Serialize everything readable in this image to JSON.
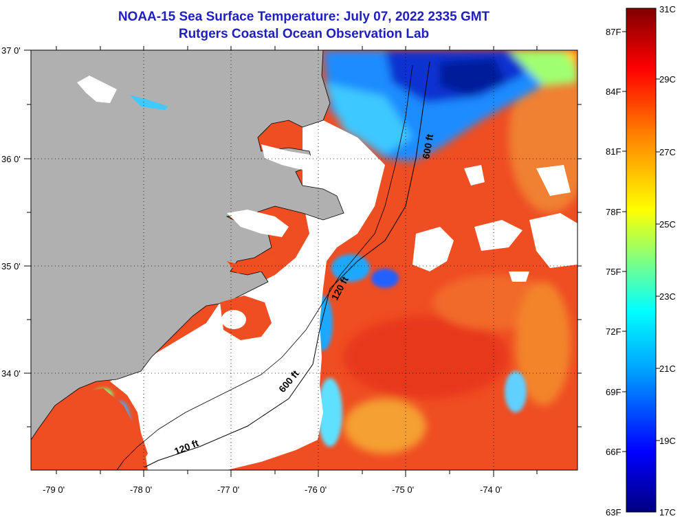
{
  "header": {
    "title": "NOAA-15 Sea Surface Temperature:  July 07, 2022 2335 GMT",
    "subtitle": "Rutgers Coastal Ocean Observation Lab"
  },
  "map": {
    "lat_labels": [
      "37 0'",
      "36 0'",
      "35 0'",
      "34 0'"
    ],
    "lon_labels": [
      "-79 0'",
      "-78 0'",
      "-77 0'",
      "-76 0'",
      "-75 0'",
      "-74 0'"
    ],
    "contours": [
      "600 ft",
      "120 ft",
      "600 ft",
      "120 ft"
    ],
    "colors": {
      "land": "#b0b0b0",
      "cloud": "#ffffff",
      "warm": "#f04a20",
      "cool": "#0a2fd0"
    }
  },
  "colorbar": {
    "fahrenheit_labels": [
      "87F",
      "84F",
      "81F",
      "78F",
      "75F",
      "72F",
      "69F",
      "66F",
      "63F"
    ],
    "celsius_labels": [
      "31C",
      "29C",
      "27C",
      "25C",
      "23C",
      "21C",
      "19C",
      "17C"
    ],
    "colors": [
      "#000080",
      "#0000ff",
      "#00a0ff",
      "#00ffff",
      "#80ff80",
      "#ffff00",
      "#ff8000",
      "#ff0000",
      "#800000"
    ]
  }
}
